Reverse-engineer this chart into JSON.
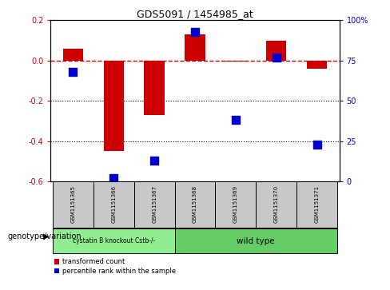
{
  "title": "GDS5091 / 1454985_at",
  "samples": [
    "GSM1151365",
    "GSM1151366",
    "GSM1151367",
    "GSM1151368",
    "GSM1151369",
    "GSM1151370",
    "GSM1151371"
  ],
  "red_values": [
    0.06,
    -0.45,
    -0.27,
    0.13,
    -0.005,
    0.1,
    -0.04
  ],
  "blue_values_pct": [
    68,
    2,
    13,
    93,
    38,
    77,
    23
  ],
  "ylim_left": [
    -0.6,
    0.2
  ],
  "ylim_right": [
    0,
    100
  ],
  "yticks_left": [
    -0.6,
    -0.4,
    -0.2,
    0.0,
    0.2
  ],
  "yticks_right": [
    0,
    25,
    50,
    75,
    100
  ],
  "ytick_labels_right": [
    "0",
    "25",
    "50",
    "75",
    "100%"
  ],
  "dotted_lines": [
    -0.2,
    -0.4
  ],
  "bar_width": 0.5,
  "blue_marker_size": 55,
  "red_color": "#CC0000",
  "blue_color": "#0000CC",
  "hline_color": "#CC0000",
  "group1_label": "cystatin B knockout Cstb-/-",
  "group2_label": "wild type",
  "group1_color": "#90EE90",
  "group2_color": "#66CC66",
  "group1_count": 3,
  "group2_count": 4,
  "genotype_label": "genotype/variation",
  "legend_red": "transformed count",
  "legend_blue": "percentile rank within the sample",
  "plot_bg": "#FFFFFF",
  "sample_box_color": "#C8C8C8",
  "title_fontsize": 9,
  "tick_fontsize": 7,
  "sample_fontsize": 5,
  "legend_fontsize": 6,
  "genotype_fontsize": 7
}
